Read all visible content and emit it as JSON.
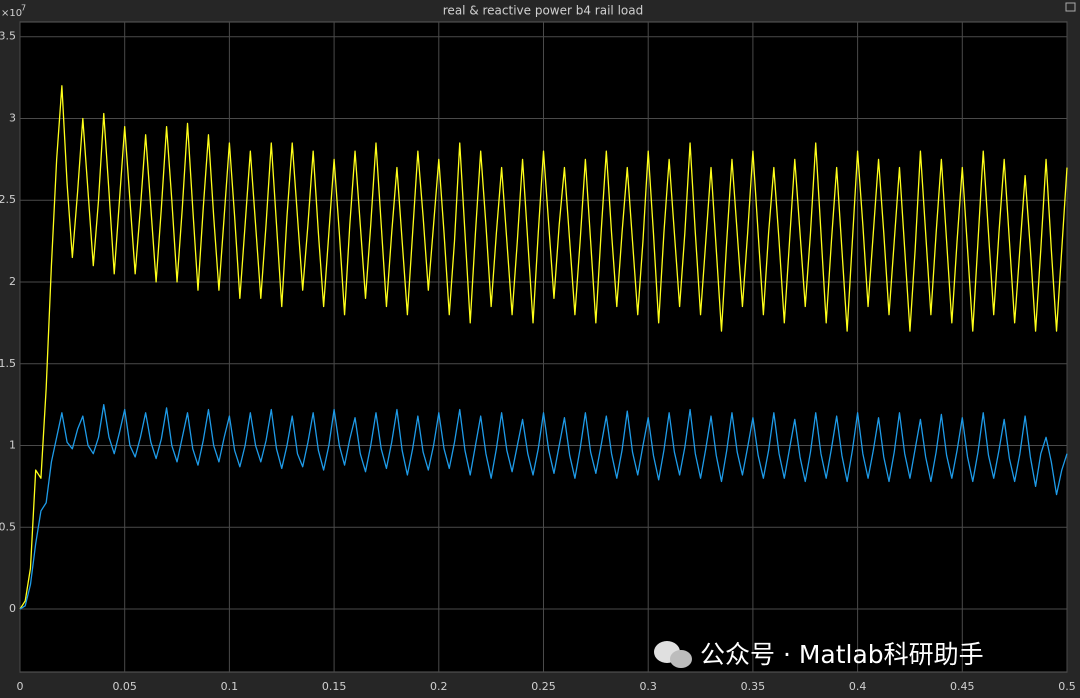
{
  "chart_data": {
    "type": "line",
    "title": "real & reactive power b4 rail load",
    "y_multiplier": "×10",
    "y_multiplier_exponent": "7",
    "watermark": "公众号 · Matlab科研助手",
    "xlim": [
      0,
      0.5
    ],
    "ylim": [
      -0.385,
      3.59
    ],
    "xticks": [
      0,
      0.05,
      0.1,
      0.15,
      0.2,
      0.25,
      0.3,
      0.35,
      0.4,
      0.45,
      0.5
    ],
    "yticks": [
      0,
      0.5,
      1,
      1.5,
      2,
      2.5,
      3,
      3.5
    ],
    "grid": true,
    "x": [
      0,
      0.0025,
      0.005,
      0.0075,
      0.01,
      0.0125,
      0.015,
      0.0175,
      0.02,
      0.0225,
      0.025,
      0.0275,
      0.03,
      0.0325,
      0.035,
      0.0375,
      0.04,
      0.0425,
      0.045,
      0.0475,
      0.05,
      0.0525,
      0.055,
      0.0575,
      0.06,
      0.0625,
      0.065,
      0.0675,
      0.07,
      0.0725,
      0.075,
      0.0775,
      0.08,
      0.0825,
      0.085,
      0.0875,
      0.09,
      0.0925,
      0.095,
      0.0975,
      0.1,
      0.1025,
      0.105,
      0.1075,
      0.11,
      0.1125,
      0.115,
      0.1175,
      0.12,
      0.1225,
      0.125,
      0.1275,
      0.13,
      0.1325,
      0.135,
      0.1375,
      0.14,
      0.1425,
      0.145,
      0.1475,
      0.15,
      0.1525,
      0.155,
      0.1575,
      0.16,
      0.1625,
      0.165,
      0.1675,
      0.17,
      0.1725,
      0.175,
      0.1775,
      0.18,
      0.1825,
      0.185,
      0.1875,
      0.19,
      0.1925,
      0.195,
      0.1975,
      0.2,
      0.2025,
      0.205,
      0.2075,
      0.21,
      0.2125,
      0.215,
      0.2175,
      0.22,
      0.2225,
      0.225,
      0.2275,
      0.23,
      0.2325,
      0.235,
      0.2375,
      0.24,
      0.2425,
      0.245,
      0.2475,
      0.25,
      0.2525,
      0.255,
      0.2575,
      0.26,
      0.2625,
      0.265,
      0.2675,
      0.27,
      0.2725,
      0.275,
      0.2775,
      0.28,
      0.2825,
      0.285,
      0.2875,
      0.29,
      0.2925,
      0.295,
      0.2975,
      0.3,
      0.3025,
      0.305,
      0.3075,
      0.31,
      0.3125,
      0.315,
      0.3175,
      0.32,
      0.3225,
      0.325,
      0.3275,
      0.33,
      0.3325,
      0.335,
      0.3375,
      0.34,
      0.3425,
      0.345,
      0.3475,
      0.35,
      0.3525,
      0.355,
      0.3575,
      0.36,
      0.3625,
      0.365,
      0.3675,
      0.37,
      0.3725,
      0.375,
      0.3775,
      0.38,
      0.3825,
      0.385,
      0.3875,
      0.39,
      0.3925,
      0.395,
      0.3975,
      0.4,
      0.4025,
      0.405,
      0.4075,
      0.41,
      0.4125,
      0.415,
      0.4175,
      0.42,
      0.4225,
      0.425,
      0.4275,
      0.43,
      0.4325,
      0.435,
      0.4375,
      0.44,
      0.4425,
      0.445,
      0.4475,
      0.45,
      0.4525,
      0.455,
      0.4575,
      0.46,
      0.4625,
      0.465,
      0.4675,
      0.47,
      0.4725,
      0.475,
      0.4775,
      0.48,
      0.4825,
      0.485,
      0.4875,
      0.49,
      0.4925,
      0.495,
      0.4975,
      0.5
    ],
    "series": [
      {
        "color": "#ffff1a",
        "values": [
          0,
          0.05,
          0.25,
          0.85,
          0.8,
          1.35,
          2.1,
          2.75,
          3.2,
          2.6,
          2.15,
          2.55,
          3.0,
          2.55,
          2.1,
          2.5,
          3.03,
          2.55,
          2.05,
          2.5,
          2.95,
          2.5,
          2.05,
          2.45,
          2.9,
          2.45,
          2.0,
          2.45,
          2.95,
          2.5,
          2.0,
          2.45,
          2.97,
          2.45,
          1.95,
          2.45,
          2.9,
          2.4,
          1.95,
          2.4,
          2.85,
          2.4,
          1.9,
          2.35,
          2.8,
          2.35,
          1.9,
          2.35,
          2.85,
          2.35,
          1.85,
          2.4,
          2.85,
          2.4,
          1.95,
          2.35,
          2.8,
          2.3,
          1.85,
          2.3,
          2.75,
          2.3,
          1.8,
          2.35,
          2.8,
          2.35,
          1.9,
          2.35,
          2.85,
          2.35,
          1.85,
          2.3,
          2.7,
          2.25,
          1.8,
          2.3,
          2.8,
          2.4,
          1.95,
          2.35,
          2.75,
          2.3,
          1.8,
          2.25,
          2.85,
          2.3,
          1.75,
          2.3,
          2.8,
          2.35,
          1.85,
          2.3,
          2.7,
          2.25,
          1.8,
          2.25,
          2.75,
          2.25,
          1.75,
          2.3,
          2.8,
          2.35,
          1.9,
          2.35,
          2.7,
          2.25,
          1.8,
          2.25,
          2.75,
          2.25,
          1.75,
          2.3,
          2.8,
          2.3,
          1.85,
          2.3,
          2.7,
          2.25,
          1.8,
          2.25,
          2.8,
          2.3,
          1.75,
          2.3,
          2.75,
          2.3,
          1.85,
          2.3,
          2.85,
          2.3,
          1.8,
          2.25,
          2.7,
          2.2,
          1.7,
          2.25,
          2.75,
          2.3,
          1.85,
          2.3,
          2.8,
          2.3,
          1.8,
          2.3,
          2.7,
          2.25,
          1.75,
          2.25,
          2.75,
          2.3,
          1.85,
          2.3,
          2.85,
          2.3,
          1.75,
          2.25,
          2.7,
          2.2,
          1.7,
          2.25,
          2.8,
          2.35,
          1.85,
          2.3,
          2.75,
          2.3,
          1.8,
          2.25,
          2.7,
          2.2,
          1.7,
          2.2,
          2.8,
          2.3,
          1.8,
          2.3,
          2.75,
          2.25,
          1.75,
          2.25,
          2.7,
          2.2,
          1.7,
          2.25,
          2.8,
          2.3,
          1.8,
          2.3,
          2.75,
          2.25,
          1.75,
          2.2,
          2.65,
          2.2,
          1.7,
          2.2,
          2.75,
          2.2,
          1.7,
          2.2,
          2.7
        ]
      },
      {
        "color": "#1e9be8",
        "values": [
          0,
          0.02,
          0.15,
          0.4,
          0.6,
          0.65,
          0.9,
          1.05,
          1.2,
          1.02,
          0.98,
          1.1,
          1.18,
          1.0,
          0.95,
          1.05,
          1.25,
          1.05,
          0.95,
          1.08,
          1.22,
          1.0,
          0.93,
          1.05,
          1.2,
          1.02,
          0.92,
          1.04,
          1.23,
          1.0,
          0.9,
          1.05,
          1.2,
          0.98,
          0.88,
          1.03,
          1.22,
          1.0,
          0.9,
          1.05,
          1.18,
          0.97,
          0.87,
          1.0,
          1.2,
          1.0,
          0.9,
          1.03,
          1.22,
          0.98,
          0.86,
          1.0,
          1.18,
          0.95,
          0.87,
          1.02,
          1.2,
          0.97,
          0.85,
          1.0,
          1.22,
          1.0,
          0.88,
          1.04,
          1.17,
          0.95,
          0.84,
          1.0,
          1.2,
          0.98,
          0.86,
          1.02,
          1.22,
          0.97,
          0.82,
          0.98,
          1.18,
          0.96,
          0.85,
          1.0,
          1.2,
          0.98,
          0.86,
          1.02,
          1.22,
          0.97,
          0.82,
          1.0,
          1.18,
          0.95,
          0.8,
          0.98,
          1.2,
          0.97,
          0.84,
          1.0,
          1.16,
          0.95,
          0.82,
          0.98,
          1.2,
          0.97,
          0.83,
          1.0,
          1.17,
          0.94,
          0.8,
          0.98,
          1.2,
          0.96,
          0.83,
          1.0,
          1.18,
          0.95,
          0.8,
          0.97,
          1.21,
          0.96,
          0.82,
          1.0,
          1.17,
          0.94,
          0.79,
          0.97,
          1.2,
          0.96,
          0.82,
          0.99,
          1.22,
          0.95,
          0.8,
          0.98,
          1.18,
          0.94,
          0.78,
          0.97,
          1.2,
          0.96,
          0.82,
          0.99,
          1.17,
          0.94,
          0.8,
          0.97,
          1.2,
          0.95,
          0.8,
          0.98,
          1.16,
          0.93,
          0.78,
          0.96,
          1.2,
          0.95,
          0.8,
          0.98,
          1.18,
          0.94,
          0.78,
          0.97,
          1.2,
          0.95,
          0.8,
          0.97,
          1.17,
          0.93,
          0.78,
          0.96,
          1.2,
          0.95,
          0.8,
          0.98,
          1.16,
          0.93,
          0.78,
          0.96,
          1.19,
          0.94,
          0.8,
          0.97,
          1.17,
          0.93,
          0.78,
          0.96,
          1.2,
          0.94,
          0.8,
          0.97,
          1.16,
          0.92,
          0.78,
          0.95,
          1.18,
          0.93,
          0.75,
          0.95,
          1.05,
          0.9,
          0.7,
          0.85,
          0.95
        ]
      }
    ]
  }
}
